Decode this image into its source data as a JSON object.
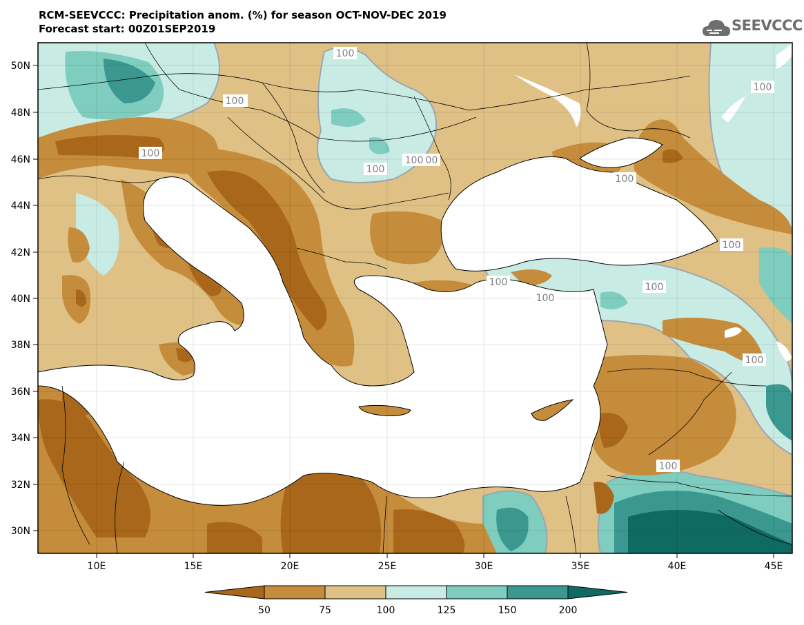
{
  "title": {
    "line1": "RCM-SEEVCCC: Precipitation anom. (%) for season OCT-NOV-DEC 2019",
    "line2": "Forecast start: 00Z01SEP2019"
  },
  "logo": {
    "text": "SEEVCCC",
    "icon": "cloud-icon"
  },
  "map": {
    "lat_labels": [
      "50N",
      "48N",
      "46N",
      "44N",
      "42N",
      "40N",
      "38N",
      "36N",
      "34N",
      "32N",
      "30N"
    ],
    "lon_labels": [
      "10E",
      "15E",
      "20E",
      "25E",
      "30E",
      "35E",
      "40E",
      "45E"
    ],
    "contour_labels": [
      "100",
      "100",
      "100",
      "100",
      "100",
      "100",
      "100",
      "100",
      "100",
      "100",
      "100",
      "100",
      "100",
      "100",
      "100"
    ],
    "colors": {
      "cat_lt50": "#a8671a",
      "cat_50_75": "#c58c3c",
      "cat_75_100": "#dfc185",
      "cat_100_125": "#c8ece4",
      "cat_125_150": "#7fcdbf",
      "cat_150_200": "#3a9890",
      "cat_gt200": "#0f6b62",
      "contour": "#9aa6b2"
    }
  },
  "colorbar": {
    "labels": [
      "50",
      "75",
      "100",
      "125",
      "150",
      "200"
    ],
    "colors": [
      "#a8671a",
      "#c58c3c",
      "#dfc185",
      "#c8ece4",
      "#7fcdbf",
      "#3a9890",
      "#0f6b62"
    ]
  }
}
